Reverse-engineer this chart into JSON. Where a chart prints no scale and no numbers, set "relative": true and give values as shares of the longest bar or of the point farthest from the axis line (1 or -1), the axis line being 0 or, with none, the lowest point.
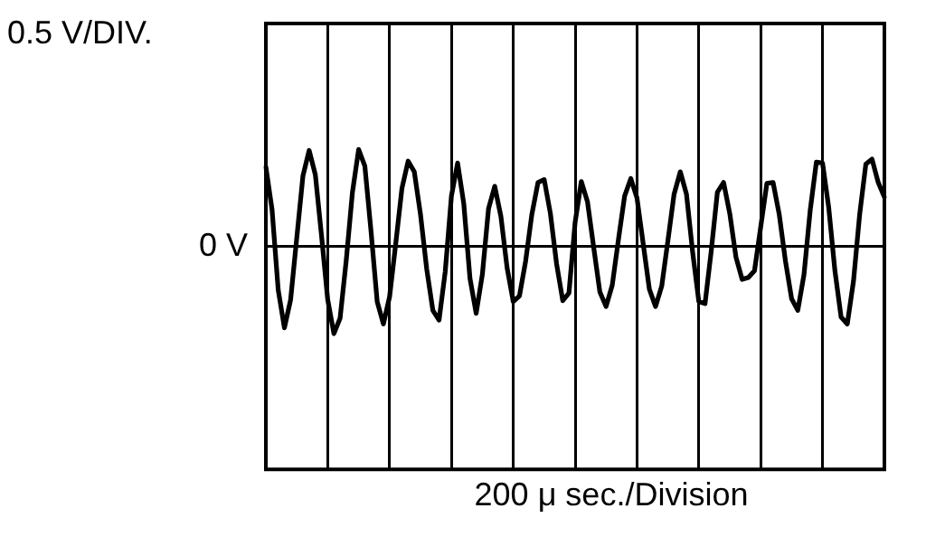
{
  "chart_data": {
    "type": "line",
    "relative": true,
    "ylabel": "0.5 V/DIV.",
    "xlabel": "200 μ sec./Division",
    "annotations": [
      "0 V"
    ],
    "categories": [
      null,
      null,
      null,
      null,
      null,
      null,
      null,
      null,
      null,
      null,
      null,
      null,
      null,
      null,
      null,
      null,
      null,
      null,
      null,
      null,
      null,
      null,
      null,
      null,
      null,
      null,
      null,
      null,
      null,
      null,
      null,
      null,
      null,
      null,
      null,
      null,
      null,
      null,
      null,
      null,
      null,
      null,
      null,
      null,
      null,
      null,
      null,
      null,
      null,
      null,
      null,
      null,
      null,
      null,
      null,
      null,
      null,
      null,
      null,
      null,
      null,
      null,
      null,
      null,
      null,
      null,
      null,
      null,
      null,
      null,
      null,
      null,
      null,
      null,
      null,
      null,
      null,
      null,
      null,
      null,
      null,
      null,
      null,
      null,
      null,
      null,
      null,
      null,
      null,
      null,
      null,
      null,
      null,
      null,
      null,
      null,
      null,
      null,
      null,
      null,
      null
    ],
    "series": [
      {
        "color": "#000000",
        "values": [
          0.82,
          0.38,
          -0.45,
          -0.84,
          -0.55,
          0.09,
          0.73,
          0.99,
          0.74,
          0.11,
          -0.55,
          -0.9,
          -0.74,
          -0.14,
          0.56,
          1,
          0.83,
          0.16,
          -0.57,
          -0.8,
          -0.52,
          0.03,
          0.6,
          0.88,
          0.77,
          0.33,
          -0.23,
          -0.66,
          -0.76,
          -0.26,
          0.52,
          0.86,
          0.44,
          -0.33,
          -0.69,
          -0.29,
          0.39,
          0.62,
          0.31,
          -0.22,
          -0.57,
          -0.51,
          -0.15,
          0.33,
          0.66,
          0.69,
          0.34,
          -0.18,
          -0.56,
          -0.48,
          0.25,
          0.67,
          0.46,
          -0.01,
          -0.47,
          -0.62,
          -0.4,
          0.07,
          0.52,
          0.7,
          0.5,
          0.03,
          -0.44,
          -0.62,
          -0.41,
          0.06,
          0.54,
          0.77,
          0.54,
          -0.06,
          -0.57,
          -0.59,
          -0.05,
          0.56,
          0.66,
          0.34,
          -0.11,
          -0.34,
          -0.32,
          -0.25,
          0.2,
          0.65,
          0.66,
          0.33,
          -0.15,
          -0.54,
          -0.66,
          -0.29,
          0.37,
          0.87,
          0.86,
          0.4,
          -0.25,
          -0.73,
          -0.8,
          -0.36,
          0.33,
          0.85,
          0.9,
          0.66,
          0.51
        ]
      }
    ],
    "grid": "x",
    "marker": "none",
    "line_style": "solid",
    "legend": false
  }
}
